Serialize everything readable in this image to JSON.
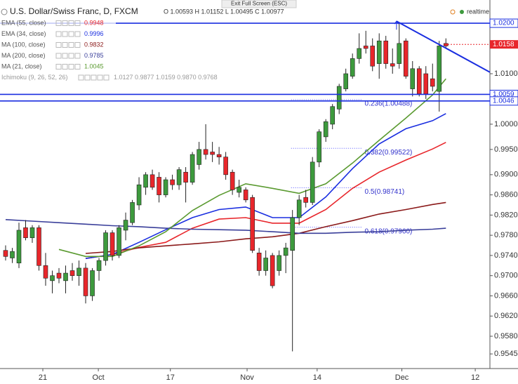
{
  "chart_data": {
    "type": "candlestick",
    "title": "U.S. Dollar/Swiss Franc, D, FXCM",
    "ohlc_label": "O 1.00593 H 1.01152 L 1.00495 C 1.00977",
    "exit_label": "Exit Full Screen (ESC)",
    "status": "realtime",
    "up_color": "#3d9a3d",
    "down_color": "#e8262b",
    "x": [
      0,
      1,
      2,
      3,
      4,
      5,
      6,
      7,
      8,
      9,
      10,
      11,
      12,
      13,
      14,
      15,
      16,
      17,
      18,
      19,
      20,
      21,
      22,
      23,
      24,
      25,
      26,
      27,
      28,
      29,
      30,
      31,
      32,
      33,
      34,
      35,
      36,
      37,
      38,
      39,
      40,
      41,
      42,
      43,
      44,
      45,
      46,
      47,
      48,
      49,
      50,
      51,
      52,
      53,
      54,
      55,
      56,
      57,
      58,
      59,
      60,
      61,
      62,
      63,
      64,
      65,
      66
    ],
    "open": [
      0.975,
      0.9735,
      0.9725,
      0.9795,
      0.9775,
      0.9795,
      0.972,
      0.969,
      0.9705,
      0.969,
      0.971,
      0.97,
      0.9715,
      0.966,
      0.971,
      0.973,
      0.9785,
      0.974,
      0.979,
      0.9805,
      0.984,
      0.9875,
      0.99,
      0.9895,
      0.986,
      0.989,
      0.988,
      0.9905,
      0.9885,
      0.992,
      0.995,
      0.9945,
      0.994,
      0.9935,
      0.9905,
      0.9865,
      0.987,
      0.9855,
      0.9745,
      0.971,
      0.974,
      0.971,
      0.974,
      0.975,
      0.9815,
      0.9855,
      0.9845,
      0.9925,
      0.9975,
      1.0,
      1.003,
      1.007,
      1.0095,
      1.013,
      1.0155,
      1.0155,
      1.012,
      1.0165,
      1.012,
      1.012,
      1.0165,
      1.007,
      1.011,
      1.01,
      1.009,
      1.0065,
      1.016
    ],
    "high": [
      0.976,
      0.9755,
      0.9805,
      0.981,
      0.98,
      0.98,
      0.9745,
      0.971,
      0.9715,
      0.972,
      0.9725,
      0.973,
      0.9725,
      0.9715,
      0.9735,
      0.979,
      0.979,
      0.98,
      0.9825,
      0.985,
      0.9895,
      0.9905,
      0.991,
      0.9905,
      0.9895,
      0.99,
      0.9915,
      0.9915,
      0.9945,
      0.9965,
      1.0,
      0.9965,
      0.9955,
      0.9945,
      0.991,
      0.989,
      0.9875,
      0.986,
      0.9755,
      0.975,
      0.9745,
      0.975,
      0.9765,
      0.983,
      0.986,
      0.987,
      0.9935,
      0.999,
      1.001,
      1.004,
      1.008,
      1.011,
      1.014,
      1.018,
      1.0185,
      1.017,
      1.018,
      1.0175,
      1.015,
      1.02,
      1.017,
      1.0125,
      1.0115,
      1.0115,
      1.012,
      1.0165,
      1.017
    ],
    "low": [
      0.973,
      0.9725,
      0.9715,
      0.977,
      0.9765,
      0.971,
      0.968,
      0.9665,
      0.9685,
      0.9665,
      0.969,
      0.968,
      0.9645,
      0.965,
      0.969,
      0.972,
      0.973,
      0.9735,
      0.977,
      0.98,
      0.983,
      0.986,
      0.987,
      0.9845,
      0.9855,
      0.987,
      0.987,
      0.9845,
      0.988,
      0.991,
      0.993,
      0.9925,
      0.992,
      0.989,
      0.986,
      0.9855,
      0.9845,
      0.9745,
      0.97,
      0.97,
      0.9675,
      0.97,
      0.9705,
      0.955,
      0.98,
      0.9835,
      0.984,
      0.9915,
      0.9965,
      0.999,
      1.002,
      1.0065,
      1.009,
      1.012,
      1.014,
      1.0105,
      1.009,
      1.011,
      1.01,
      1.011,
      1.009,
      1.0055,
      1.0055,
      1.005,
      1.0065,
      1.0025,
      1.015
    ],
    "close": [
      0.9738,
      0.9748,
      0.979,
      0.9775,
      0.9795,
      0.972,
      0.9695,
      0.97,
      0.9695,
      0.9705,
      0.97,
      0.9715,
      0.966,
      0.971,
      0.973,
      0.9785,
      0.974,
      0.9795,
      0.981,
      0.9845,
      0.988,
      0.99,
      0.9875,
      0.986,
      0.989,
      0.988,
      0.991,
      0.9885,
      0.994,
      0.995,
      0.994,
      0.994,
      0.9935,
      0.99,
      0.987,
      0.9875,
      0.985,
      0.975,
      0.971,
      0.9735,
      0.968,
      0.974,
      0.9755,
      0.9815,
      0.985,
      0.9845,
      0.9925,
      0.9985,
      1.0005,
      1.0035,
      1.0075,
      1.01,
      1.013,
      1.015,
      1.015,
      1.0115,
      1.0165,
      1.012,
      1.0115,
      1.016,
      1.0095,
      1.011,
      1.006,
      1.006,
      1.0075,
      1.0155,
      1.0155
    ],
    "series": [
      {
        "name": "EMA (55, close)",
        "value_label": "0.9948",
        "color": "#e8262b",
        "x": [
          12,
          16,
          20,
          24,
          28,
          32,
          36,
          40,
          44,
          48,
          52,
          56,
          60,
          64,
          66
        ],
        "values": [
          0.9734,
          0.9742,
          0.9756,
          0.9766,
          0.9794,
          0.9812,
          0.9815,
          0.9804,
          0.9804,
          0.9831,
          0.9873,
          0.9905,
          0.9929,
          0.9951,
          0.9964
        ]
      },
      {
        "name": "EMA (34, close)",
        "value_label": "0.9996",
        "color": "#1a2ee0",
        "x": [
          12,
          16,
          20,
          24,
          28,
          32,
          36,
          40,
          44,
          48,
          52,
          56,
          60,
          64,
          66
        ],
        "values": [
          0.9734,
          0.9742,
          0.9766,
          0.9791,
          0.9815,
          0.9831,
          0.9836,
          0.9815,
          0.9815,
          0.9856,
          0.9912,
          0.9961,
          0.9991,
          1.0007,
          1.0021
        ]
      },
      {
        "name": "MA (100, close)",
        "value_label": "0.9832",
        "color": "#8b1a1a",
        "x": [
          12,
          16,
          20,
          24,
          28,
          32,
          36,
          40,
          44,
          48,
          52,
          56,
          60,
          64,
          66
        ],
        "values": [
          0.9744,
          0.9748,
          0.9755,
          0.9759,
          0.9763,
          0.9767,
          0.9773,
          0.9777,
          0.9784,
          0.9797,
          0.9809,
          0.9822,
          0.9831,
          0.9841,
          0.9845
        ]
      },
      {
        "name": "MA (200, close)",
        "value_label": "0.9785",
        "color": "#3a3f9a",
        "x": [
          0,
          4,
          8,
          12,
          16,
          20,
          24,
          28,
          32,
          36,
          40,
          44,
          48,
          52,
          56,
          60,
          64,
          66
        ],
        "values": [
          0.9811,
          0.9808,
          0.9805,
          0.9802,
          0.9799,
          0.9797,
          0.9794,
          0.9792,
          0.9791,
          0.979,
          0.9787,
          0.9784,
          0.9784,
          0.9786,
          0.9787,
          0.979,
          0.9792,
          0.9794
        ]
      },
      {
        "name": "MA (21, close)",
        "value_label": "1.0045",
        "color": "#5a9a30",
        "x": [
          8,
          12,
          16,
          20,
          24,
          28,
          32,
          36,
          40,
          44,
          48,
          52,
          56,
          60,
          64,
          66
        ],
        "values": [
          0.9752,
          0.9738,
          0.9738,
          0.9759,
          0.9787,
          0.9829,
          0.9859,
          0.9882,
          0.9873,
          0.9863,
          0.9882,
          0.9923,
          0.9968,
          1.0012,
          1.0058,
          1.009
        ]
      }
    ],
    "indicator": {
      "name": "Ichimoku (9, 26, 52, 26)",
      "values_label": "1.0127 0.9877 1.0159 0.9870 0.9768"
    },
    "hlines": [
      {
        "value": 1.02,
        "label": "1.0200"
      },
      {
        "value": 1.0059,
        "label": "1.0059"
      },
      {
        "value": 1.0046,
        "label": "1.0046"
      }
    ],
    "hline_color": "#1a2ee0",
    "trendline": {
      "x": [
        58.6,
        72.6
      ],
      "y": [
        1.0204,
        1.0103
      ]
    },
    "last_price": {
      "value": 1.01581,
      "label": "1.0158"
    },
    "fib_x": [
      42.8,
      53.4
    ],
    "fibs": [
      {
        "value": 1.00488,
        "label": "0.236(1.00488)"
      },
      {
        "value": 0.99522,
        "label": "0.382(0.99522)"
      },
      {
        "value": 0.98741,
        "label": "0.5(0.98741)"
      },
      {
        "value": 0.9796,
        "label": "0.618(0.97960)"
      }
    ],
    "xlim": [
      -0.84,
      72.6
    ],
    "ylim": [
      0.9516,
      1.0246
    ],
    "xticks": [
      {
        "value": 5.58,
        "label": "21"
      },
      {
        "value": 13.9,
        "label": "Oct"
      },
      {
        "value": 24.7,
        "label": "17"
      },
      {
        "value": 36.2,
        "label": "Nov"
      },
      {
        "value": 46.7,
        "label": "14"
      },
      {
        "value": 59.4,
        "label": "Dec"
      },
      {
        "value": 70.4,
        "label": "12"
      }
    ],
    "yticks": [
      {
        "value": 1.02,
        "label": "1.0200"
      },
      {
        "value": 1.01,
        "label": "1.0100"
      },
      {
        "value": 1.0,
        "label": "1.0000"
      },
      {
        "value": 0.995,
        "label": "0.9950"
      },
      {
        "value": 0.99,
        "label": "0.9900"
      },
      {
        "value": 0.986,
        "label": "0.9860"
      },
      {
        "value": 0.982,
        "label": "0.9820"
      },
      {
        "value": 0.978,
        "label": "0.9780"
      },
      {
        "value": 0.974,
        "label": "0.9740"
      },
      {
        "value": 0.97,
        "label": "0.9700"
      },
      {
        "value": 0.966,
        "label": "0.9660"
      },
      {
        "value": 0.962,
        "label": "0.9620"
      },
      {
        "value": 0.958,
        "label": "0.9580"
      },
      {
        "value": 0.9545,
        "label": "0.9545"
      }
    ],
    "grid": false
  }
}
